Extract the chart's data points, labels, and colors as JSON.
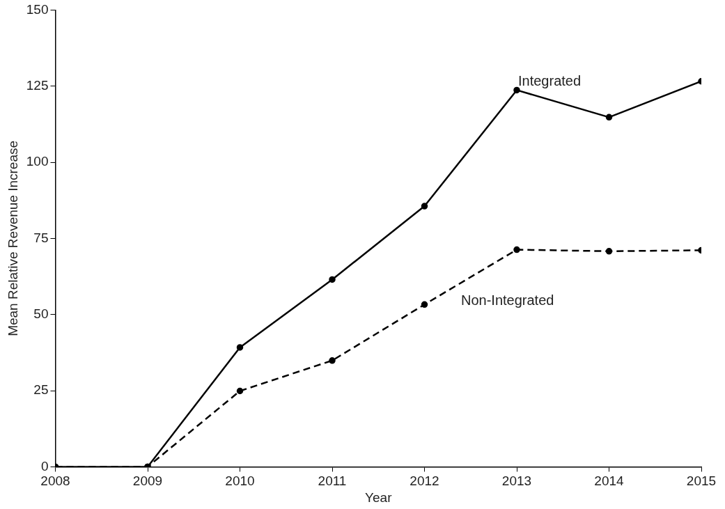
{
  "chart_data": {
    "type": "line",
    "xlabel": "Year",
    "ylabel": "Mean Relative Revenue Increase",
    "x": [
      2008,
      2009,
      2010,
      2011,
      2012,
      2013,
      2014,
      2015
    ],
    "series": [
      {
        "name": "Integrated",
        "color": "#000000",
        "line_style": "solid",
        "values": [
          0,
          0,
          39.2,
          61.5,
          85.6,
          123.7,
          114.8,
          126.6
        ]
      },
      {
        "name": "Non-Integrated",
        "color": "#000000",
        "line_style": "dashed",
        "values": [
          0,
          0,
          24.9,
          34.9,
          53.3,
          71.3,
          70.8,
          71.1
        ]
      }
    ],
    "xlim": [
      2008,
      2015
    ],
    "xticks": [
      2008,
      2009,
      2010,
      2011,
      2012,
      2013,
      2014,
      2015
    ],
    "ylim": [
      0,
      150
    ],
    "yticks": [
      0,
      25,
      50,
      75,
      100,
      125,
      150
    ],
    "grid": false,
    "legend": false,
    "marker": "circle"
  }
}
